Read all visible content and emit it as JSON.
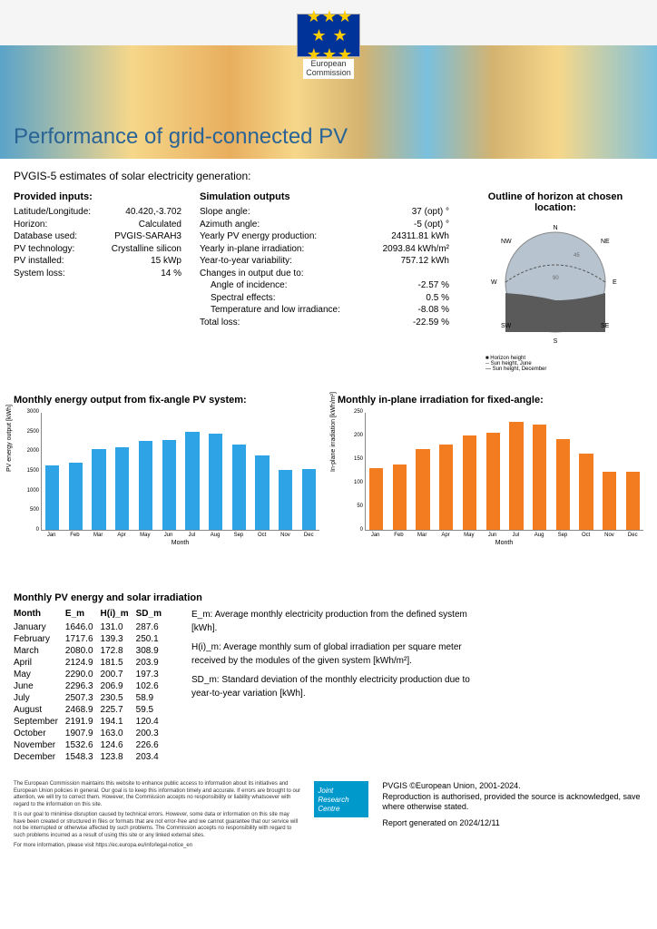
{
  "header": {
    "org_lines": [
      "European",
      "Commission"
    ],
    "title": "Performance of grid-connected PV"
  },
  "subtitle": "PVGIS-5 estimates of solar electricity generation:",
  "inputs": {
    "heading": "Provided inputs:",
    "rows": [
      {
        "label": "Latitude/Longitude:",
        "value": "40.420,-3.702"
      },
      {
        "label": "Horizon:",
        "value": "Calculated"
      },
      {
        "label": "Database used:",
        "value": "PVGIS-SARAH3"
      },
      {
        "label": "PV technology:",
        "value": "Crystalline silicon"
      },
      {
        "label": "PV installed:",
        "value": "15 kWp"
      },
      {
        "label": "System loss:",
        "value": "14 %"
      }
    ]
  },
  "outputs": {
    "heading": "Simulation outputs",
    "rows": [
      {
        "label": "Slope angle:",
        "value": "37 (opt) °"
      },
      {
        "label": "Azimuth angle:",
        "value": "-5 (opt) °"
      },
      {
        "label": "Yearly PV energy production:",
        "value": "24311.81 kWh"
      },
      {
        "label": "Yearly in-plane irradiation:",
        "value": "2093.84 kWh/m²"
      },
      {
        "label": "Year-to-year variability:",
        "value": "757.12 kWh"
      },
      {
        "label": "Changes in output due to:",
        "value": ""
      },
      {
        "label": "Angle of incidence:",
        "value": "-2.57 %",
        "indent": true
      },
      {
        "label": "Spectral effects:",
        "value": "0.5 %",
        "indent": true
      },
      {
        "label": "Temperature and low irradiance:",
        "value": "-8.08 %",
        "indent": true
      },
      {
        "label": "Total loss:",
        "value": "-22.59 %"
      }
    ]
  },
  "horizon": {
    "heading": "Outline of horizon at chosen location:",
    "compass": [
      "N",
      "NE",
      "E",
      "SE",
      "S",
      "SW",
      "W",
      "NW"
    ],
    "legend": [
      "Horizon height",
      "Sun height, June",
      "Sun height, December"
    ],
    "rings": [
      "45",
      "90"
    ],
    "colors": {
      "fill": "#b7c4d0",
      "dash": "#555",
      "solid": "#888"
    }
  },
  "months": [
    "Jan",
    "Feb",
    "Mar",
    "Apr",
    "May",
    "Jun",
    "Jul",
    "Aug",
    "Sep",
    "Oct",
    "Nov",
    "Dec"
  ],
  "chart1": {
    "title": "Monthly energy output from fix-angle PV system:",
    "ylabel": "PV energy output [kWh]",
    "xlabel": "Month",
    "color": "#2ea3e6",
    "ymax": 3000,
    "ytick_step": 500,
    "values": [
      1646,
      1717.6,
      2080,
      2124.9,
      2290,
      2296.3,
      2507.3,
      2468.9,
      2191.9,
      1907.9,
      1532.6,
      1548.3
    ]
  },
  "chart2": {
    "title": "Monthly in-plane irradiation for fixed-angle:",
    "ylabel": "In-plane irradiation [kWh/m²]",
    "xlabel": "Month",
    "color": "#f47c20",
    "ymax": 250,
    "ytick_step": 50,
    "values": [
      131,
      139.3,
      172.8,
      181.5,
      200.7,
      206.9,
      230.5,
      225.7,
      194.1,
      163,
      124.6,
      123.8
    ]
  },
  "table": {
    "title": "Monthly PV energy and solar irradiation",
    "columns": [
      "Month",
      "E_m",
      "H(i)_m",
      "SD_m"
    ],
    "rows": [
      [
        "January",
        "1646.0",
        "131.0",
        "287.6"
      ],
      [
        "February",
        "1717.6",
        "139.3",
        "250.1"
      ],
      [
        "March",
        "2080.0",
        "172.8",
        "308.9"
      ],
      [
        "April",
        "2124.9",
        "181.5",
        "203.9"
      ],
      [
        "May",
        "2290.0",
        "200.7",
        "197.3"
      ],
      [
        "June",
        "2296.3",
        "206.9",
        "102.6"
      ],
      [
        "July",
        "2507.3",
        "230.5",
        "58.9"
      ],
      [
        "August",
        "2468.9",
        "225.7",
        "59.5"
      ],
      [
        "September",
        "2191.9",
        "194.1",
        "120.4"
      ],
      [
        "October",
        "1907.9",
        "163.0",
        "200.3"
      ],
      [
        "November",
        "1532.6",
        "124.6",
        "226.6"
      ],
      [
        "December",
        "1548.3",
        "123.8",
        "203.4"
      ]
    ],
    "legend": [
      "E_m: Average monthly electricity production from the defined system [kWh].",
      "H(i)_m: Average monthly sum of global irradiation per square meter received by the modules of the given system [kWh/m²].",
      "SD_m: Standard deviation of the monthly electricity production due to year-to-year variation [kWh]."
    ]
  },
  "footer": {
    "disclaimer": [
      "The European Commission maintains this website to enhance public access to information about its initiatives and European Union policies in general. Our goal is to keep this information timely and accurate. If errors are brought to our attention, we will try to correct them. However, the Commission accepts no responsibility or liability whatsoever with regard to the information on this site.",
      "It is our goal to minimise disruption caused by technical errors. However, some data or information on this site may have been created or structured in files or formats that are not error-free and we cannot guarantee that our service will not be interrupted or otherwise affected by such problems. The Commission accepts no responsibility with regard to such problems incurred as a result of using this site or any linked external sites.",
      "For more information, please visit https://ec.europa.eu/info/legal-notice_en"
    ],
    "jrc": [
      "Joint",
      "Research",
      "Centre"
    ],
    "copyright": "PVGIS ©European Union, 2001-2024.",
    "repro": "Reproduction is authorised, provided the source is acknowledged, save where otherwise stated.",
    "generated": "Report generated on 2024/12/11"
  }
}
